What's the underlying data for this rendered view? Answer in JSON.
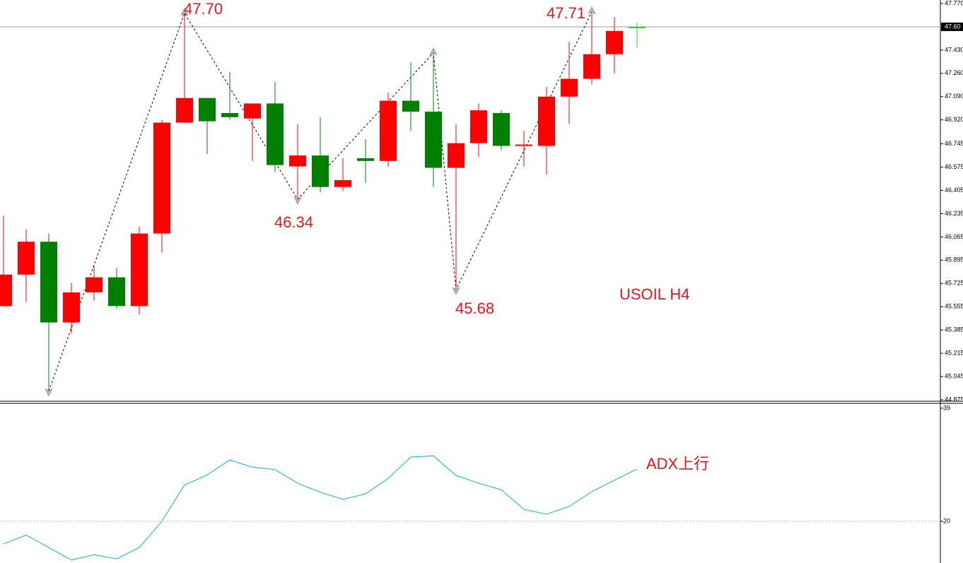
{
  "chart_data": [
    {
      "type": "candlestick",
      "open": [
        45.56,
        45.79,
        46.03,
        45.44,
        45.66,
        45.77,
        45.56,
        46.09,
        46.9,
        47.08,
        46.97,
        46.93,
        47.04,
        46.58,
        46.66,
        46.43,
        46.64,
        46.62,
        47.06,
        46.98,
        46.57,
        46.75,
        46.97,
        46.73,
        46.73,
        47.09,
        47.22,
        47.4,
        47.6
      ],
      "high": [
        46.22,
        46.12,
        46.09,
        45.73,
        45.85,
        45.84,
        46.14,
        46.92,
        47.7,
        47.08,
        47.27,
        47.04,
        47.2,
        46.89,
        46.94,
        46.64,
        46.78,
        47.12,
        47.34,
        47.41,
        46.89,
        47.04,
        46.99,
        46.84,
        47.16,
        47.49,
        47.71,
        47.67,
        47.63
      ],
      "low": [
        45.56,
        45.59,
        44.94,
        45.36,
        45.6,
        45.54,
        45.5,
        45.95,
        46.9,
        46.67,
        46.92,
        46.62,
        46.54,
        46.34,
        46.39,
        46.4,
        46.46,
        46.58,
        46.84,
        46.43,
        45.68,
        46.65,
        46.7,
        46.58,
        46.52,
        46.89,
        47.18,
        47.26,
        47.45
      ],
      "close": [
        45.79,
        46.03,
        45.44,
        45.66,
        45.77,
        45.56,
        46.09,
        46.9,
        47.08,
        46.91,
        46.94,
        47.04,
        46.59,
        46.66,
        46.43,
        46.48,
        46.62,
        47.06,
        46.98,
        46.57,
        46.75,
        46.99,
        46.73,
        46.74,
        47.09,
        47.22,
        47.4,
        47.57,
        47.6
      ],
      "colors": [
        "#ff0000",
        "#ff0000",
        "#008000",
        "#ff0000",
        "#ff0000",
        "#008000",
        "#ff0000",
        "#ff0000",
        "#ff0000",
        "#008000",
        "#008000",
        "#ff0000",
        "#008000",
        "#ff0000",
        "#008000",
        "#ff0000",
        "#008000",
        "#ff0000",
        "#008000",
        "#008000",
        "#ff0000",
        "#ff0000",
        "#008000",
        "#ff0000",
        "#ff0000",
        "#ff0000",
        "#ff0000",
        "#ff0000",
        "#33cc33"
      ],
      "zigzag": {
        "index": [
          2,
          8,
          13,
          19,
          20,
          26
        ],
        "values": [
          44.94,
          47.7,
          46.34,
          47.41,
          45.68,
          47.71
        ]
      },
      "current_price": {
        "value": 47.6,
        "label": "47.60"
      },
      "ylim": [
        44.875,
        47.77
      ],
      "yticks": [
        {
          "value": 47.77,
          "label": "47.770"
        },
        {
          "value": 47.43,
          "label": "47.430"
        },
        {
          "value": 47.26,
          "label": "47.260"
        },
        {
          "value": 47.09,
          "label": "47.090"
        },
        {
          "value": 46.92,
          "label": "46.920"
        },
        {
          "value": 46.745,
          "label": "46.745"
        },
        {
          "value": 46.575,
          "label": "46.575"
        },
        {
          "value": 46.405,
          "label": "46.405"
        },
        {
          "value": 46.235,
          "label": "46.235"
        },
        {
          "value": 46.065,
          "label": "46.065"
        },
        {
          "value": 45.895,
          "label": "45.895"
        },
        {
          "value": 45.725,
          "label": "45.725"
        },
        {
          "value": 45.555,
          "label": "45.555"
        },
        {
          "value": 45.385,
          "label": "45.385"
        },
        {
          "value": 45.215,
          "label": "45.215"
        },
        {
          "value": 45.045,
          "label": "45.045"
        },
        {
          "value": 44.875,
          "label": "44.875"
        }
      ],
      "annotations": [
        "47.70",
        "47.71",
        "46.34",
        "45.68",
        "USOIL H4"
      ]
    },
    {
      "type": "line",
      "series": [
        {
          "name": "ADX",
          "color": "#1ab0c0",
          "values": [
            16.2,
            17.7,
            15.6,
            13.5,
            14.4,
            13.7,
            15.6,
            20.0,
            26.1,
            27.8,
            30.3,
            29.1,
            28.7,
            26.4,
            24.9,
            23.7,
            24.6,
            27.2,
            30.8,
            31.0,
            27.7,
            26.4,
            25.3,
            22.0,
            21.2,
            22.5,
            25.0,
            26.9,
            28.8
          ]
        }
      ],
      "ylim": [
        13.0,
        39.7
      ],
      "yticks": [
        39,
        20
      ],
      "grid_at": 20,
      "annotations": [
        "ADX上行"
      ]
    }
  ]
}
